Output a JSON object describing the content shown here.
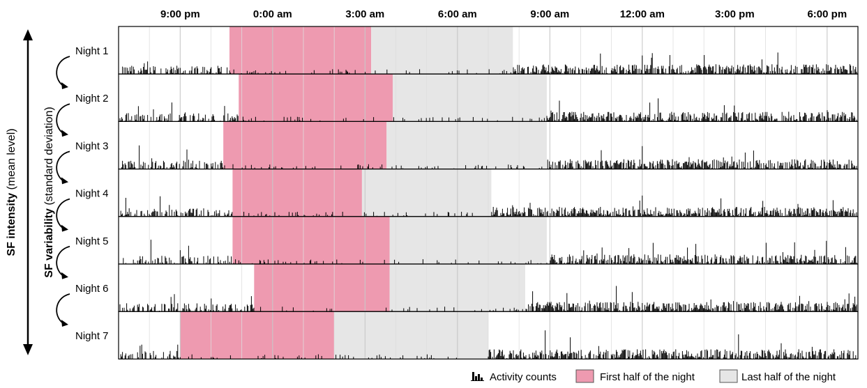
{
  "chart_data": {
    "type": "bar",
    "x_ticks": [
      "9:00 pm",
      "0:00 am",
      "3:00 am",
      "6:00 am",
      "9:00 am",
      "12:00 am",
      "3:00 pm",
      "6:00 pm"
    ],
    "x_tick_hours": [
      21,
      24,
      27,
      30,
      33,
      36,
      39,
      42
    ],
    "x_range_hours": [
      19.0,
      43.0
    ],
    "y_axis_titles": {
      "outer_bold": "SF intensity",
      "outer_rest": " (mean level)",
      "inner_bold": "SF variability",
      "inner_rest": " (standard deviation)"
    },
    "nights": [
      {
        "label": "Night 1",
        "first_half": [
          22.6,
          27.2
        ],
        "last_half": [
          27.2,
          31.8
        ]
      },
      {
        "label": "Night 2",
        "first_half": [
          22.9,
          27.9
        ],
        "last_half": [
          27.9,
          32.9
        ]
      },
      {
        "label": "Night 3",
        "first_half": [
          22.4,
          27.7
        ],
        "last_half": [
          27.7,
          32.9
        ]
      },
      {
        "label": "Night 4",
        "first_half": [
          22.7,
          26.9
        ],
        "last_half": [
          26.9,
          31.1
        ]
      },
      {
        "label": "Night 5",
        "first_half": [
          22.7,
          27.8
        ],
        "last_half": [
          27.8,
          32.9
        ]
      },
      {
        "label": "Night 6",
        "first_half": [
          23.4,
          27.8
        ],
        "last_half": [
          27.8,
          32.2
        ]
      },
      {
        "label": "Night 7",
        "first_half": [
          21.0,
          26.0
        ],
        "last_half": [
          26.0,
          31.0
        ]
      }
    ],
    "legend": [
      {
        "label": "Activity counts",
        "color": "#000000"
      },
      {
        "label": "First half of the night",
        "color": "#ee9ab0"
      },
      {
        "label": "Last half of the night",
        "color": "#e6e6e6"
      }
    ],
    "colors": {
      "first_half": "#ee9ab0",
      "last_half": "#e6e6e6",
      "activity": "#000000",
      "grid": "#cccccc"
    }
  }
}
